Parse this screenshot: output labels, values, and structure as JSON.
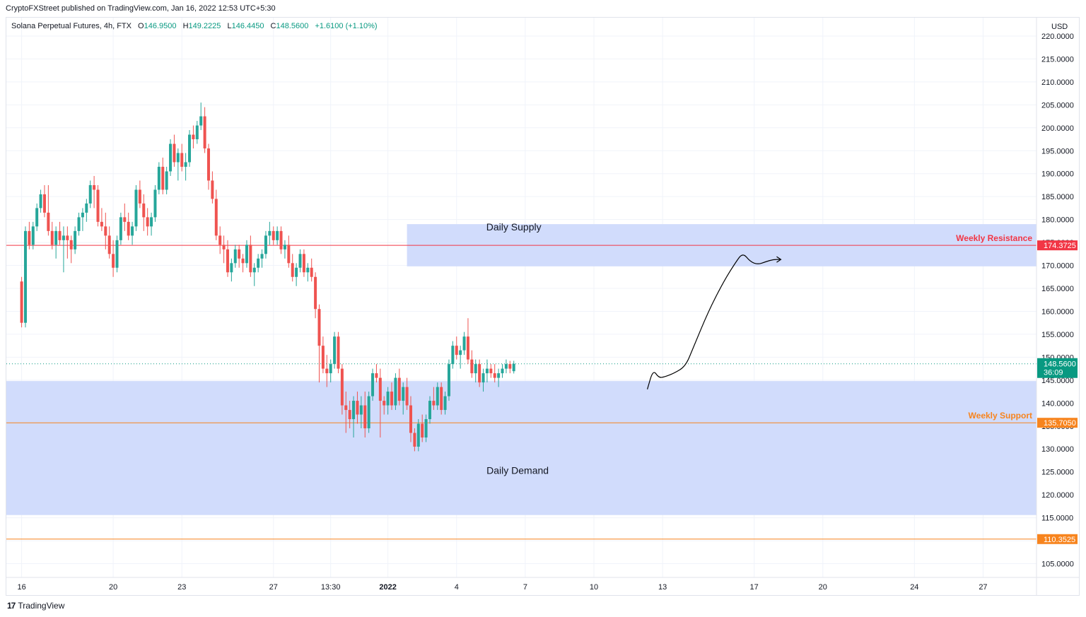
{
  "header": {
    "published_by": "CryptoFXStreet published on TradingView.com, Jan 16, 2022 12:53 UTC+5:30"
  },
  "legend": {
    "symbol": "Solana Perpetual Futures, 4h, FTX",
    "open_label": "O",
    "open": "146.9500",
    "high_label": "H",
    "high": "149.2225",
    "low_label": "L",
    "low": "146.4450",
    "close_label": "C",
    "close": "148.5600",
    "change": "+1.6100 (+1.10%)"
  },
  "footer": {
    "logo_text": "TradingView"
  },
  "colors": {
    "up": "#26a69a",
    "down": "#ef5350",
    "zone": "#d1dcfc",
    "resistance": "#f23645",
    "support": "#f7841e",
    "price": "#089981",
    "grid": "#f0f3fa"
  },
  "chart_data": {
    "type": "candlestick",
    "currency": "USD",
    "ylim": [
      102,
      224
    ],
    "y_ticks": [
      105,
      110,
      115,
      120,
      125,
      130,
      135,
      140,
      145,
      150,
      155,
      160,
      165,
      170,
      175,
      180,
      185,
      190,
      195,
      200,
      205,
      210,
      215,
      220
    ],
    "y_tick_labels": [
      "105.0000",
      "110.0000",
      "115.0000",
      "120.0000",
      "125.0000",
      "130.0000",
      "135.0000",
      "140.0000",
      "145.0000",
      "150.0000",
      "155.0000",
      "160.0000",
      "165.0000",
      "170.0000",
      "175.0000",
      "180.0000",
      "185.0000",
      "190.0000",
      "195.0000",
      "200.0000",
      "205.0000",
      "210.0000",
      "215.0000",
      "220.0000"
    ],
    "x_ticks": [
      {
        "t": 0,
        "label": "16",
        "bold": false
      },
      {
        "t": 24,
        "label": "20",
        "bold": false
      },
      {
        "t": 42,
        "label": "23",
        "bold": false
      },
      {
        "t": 66,
        "label": "27",
        "bold": false
      },
      {
        "t": 81,
        "label": "13:30",
        "bold": false
      },
      {
        "t": 96,
        "label": "2022",
        "bold": true
      },
      {
        "t": 114,
        "label": "4",
        "bold": false
      },
      {
        "t": 132,
        "label": "7",
        "bold": false
      },
      {
        "t": 150,
        "label": "10",
        "bold": false
      },
      {
        "t": 168,
        "label": "13",
        "bold": false
      },
      {
        "t": 192,
        "label": "17",
        "bold": false
      },
      {
        "t": 210,
        "label": "20",
        "bold": false
      },
      {
        "t": 234,
        "label": "24",
        "bold": false
      },
      {
        "t": 252,
        "label": "27",
        "bold": false
      }
    ],
    "x_range": [
      -4,
      266
    ],
    "zones": [
      {
        "label": "Daily Supply",
        "x_start": 101,
        "x_end": 266,
        "y_top": 179,
        "y_bottom": 169.8,
        "label_t": 129,
        "label_y": 177.6
      },
      {
        "label": "Daily Demand",
        "x_start": -4,
        "x_end": 266,
        "y_top": 144.8,
        "y_bottom": 115.6,
        "label_t": 130,
        "label_y": 124.6
      }
    ],
    "levels": [
      {
        "name": "Weekly Resistance",
        "value": 174.3725,
        "label": "174.3725",
        "kind": "resistance"
      },
      {
        "name": "Weekly Support",
        "value": 135.705,
        "label": "135.7050",
        "kind": "support"
      },
      {
        "name": "",
        "value": 110.3525,
        "label": "110.3525",
        "kind": "support"
      }
    ],
    "last_price": {
      "value": 148.56,
      "label": "148.5600",
      "countdown": "36:09"
    },
    "projection": [
      [
        164,
        143
      ],
      [
        165.5,
        147.3
      ],
      [
        167,
        145.5
      ],
      [
        168.5,
        145.7
      ],
      [
        171,
        146.5
      ],
      [
        174,
        148
      ],
      [
        176,
        152
      ],
      [
        180,
        160
      ],
      [
        184,
        166.5
      ],
      [
        187,
        170.5
      ],
      [
        189,
        172.8
      ],
      [
        191,
        170.8
      ],
      [
        193,
        170.2
      ],
      [
        195,
        170.8
      ],
      [
        197,
        171.3
      ],
      [
        199,
        171.3
      ]
    ],
    "candles": [
      [
        166.5,
        167.5,
        156.5,
        157.5
      ],
      [
        157.5,
        178.5,
        156.5,
        177.5
      ],
      [
        177.5,
        179.5,
        173.5,
        174.5
      ],
      [
        174.5,
        179.5,
        173.5,
        178.5
      ],
      [
        178.5,
        183.5,
        177.5,
        182.5
      ],
      [
        182.5,
        186.5,
        181.5,
        185.5
      ],
      [
        185.5,
        187.5,
        180.5,
        181.5
      ],
      [
        181.5,
        187.5,
        176.5,
        177.5
      ],
      [
        177.5,
        179.5,
        173.5,
        174.5
      ],
      [
        174.5,
        178.5,
        171.5,
        177.5
      ],
      [
        177.5,
        179.5,
        174.5,
        175.5
      ],
      [
        175.5,
        178.5,
        168.5,
        176.5
      ],
      [
        176.5,
        178.5,
        171.5,
        175.5
      ],
      [
        175.5,
        176.5,
        170.5,
        173.5
      ],
      [
        173.5,
        178.5,
        172.5,
        177.5
      ],
      [
        177.5,
        181.5,
        176.5,
        180.5
      ],
      [
        180.5,
        182.5,
        177.5,
        181.5
      ],
      [
        181.5,
        184.5,
        179.5,
        183.5
      ],
      [
        183.5,
        188.5,
        182.5,
        187.5
      ],
      [
        187.5,
        189.5,
        182.5,
        186.5
      ],
      [
        186.5,
        187.5,
        178.5,
        179.5
      ],
      [
        179.5,
        182.5,
        177.5,
        178.5
      ],
      [
        178.5,
        181.5,
        173.5,
        176.5
      ],
      [
        176.5,
        178.5,
        171.5,
        172.5
      ],
      [
        172.5,
        175.5,
        167.5,
        169.5
      ],
      [
        169.5,
        176.5,
        168.5,
        175.5
      ],
      [
        175.5,
        181.5,
        174.5,
        180.5
      ],
      [
        180.5,
        183.5,
        177.5,
        179.5
      ],
      [
        179.5,
        181.5,
        175.5,
        176.5
      ],
      [
        176.5,
        179.5,
        174.5,
        178.5
      ],
      [
        178.5,
        187.5,
        177.5,
        186.5
      ],
      [
        186.5,
        188.5,
        182.5,
        183.5
      ],
      [
        183.5,
        185.5,
        177.5,
        180.5
      ],
      [
        180.5,
        182.5,
        176.5,
        178.5
      ],
      [
        178.5,
        181.5,
        176.5,
        180.5
      ],
      [
        180.5,
        187.5,
        179.5,
        186.5
      ],
      [
        186.5,
        192.5,
        185.5,
        191.5
      ],
      [
        191.5,
        193.5,
        185.5,
        186.5
      ],
      [
        186.5,
        191.5,
        185.5,
        190.5
      ],
      [
        190.5,
        197.5,
        189.5,
        196.5
      ],
      [
        196.5,
        198.5,
        191.5,
        192.5
      ],
      [
        192.5,
        195.5,
        188.5,
        194.5
      ],
      [
        194.5,
        196.5,
        190.5,
        191.5
      ],
      [
        191.5,
        194.5,
        188.5,
        192.5
      ],
      [
        192.5,
        199.5,
        191.5,
        198.5
      ],
      [
        198.5,
        200.5,
        195.5,
        197.5
      ],
      [
        197.5,
        201.5,
        196.5,
        200.5
      ],
      [
        200.5,
        205.5,
        199.5,
        202.5
      ],
      [
        202.5,
        204.5,
        194.5,
        195.5
      ],
      [
        195.5,
        196.5,
        186.5,
        188.5
      ],
      [
        188.5,
        190.5,
        183.5,
        184.5
      ],
      [
        184.5,
        186.5,
        175.5,
        176.5
      ],
      [
        176.5,
        178.5,
        172.5,
        174.5
      ],
      [
        174.5,
        176.5,
        170.5,
        173.5
      ],
      [
        173.5,
        175.5,
        167.5,
        168.5
      ],
      [
        168.5,
        171.5,
        166.5,
        170.5
      ],
      [
        170.5,
        174.5,
        169.5,
        173.5
      ],
      [
        173.5,
        174.5,
        169.5,
        171.5
      ],
      [
        171.5,
        172.5,
        168.5,
        170.5
      ],
      [
        170.5,
        175.5,
        169.5,
        174.5
      ],
      [
        174.5,
        176.5,
        167.5,
        168.5
      ],
      [
        168.5,
        170.5,
        165.5,
        169.5
      ],
      [
        169.5,
        172.5,
        168.5,
        171.5
      ],
      [
        171.5,
        173.5,
        169.5,
        172.5
      ],
      [
        172.5,
        177.5,
        171.5,
        176.5
      ],
      [
        176.5,
        179.5,
        174.5,
        177.5
      ],
      [
        177.5,
        178.5,
        174.5,
        175.5
      ],
      [
        175.5,
        178.5,
        174.5,
        177.5
      ],
      [
        177.5,
        178.5,
        172.5,
        173.5
      ],
      [
        173.5,
        175.5,
        171.5,
        174.5
      ],
      [
        174.5,
        176.5,
        169.5,
        170.5
      ],
      [
        170.5,
        172.5,
        166.5,
        167.5
      ],
      [
        167.5,
        170.5,
        165.5,
        169.5
      ],
      [
        169.5,
        173.5,
        168.5,
        172.5
      ],
      [
        172.5,
        173.5,
        167.5,
        168.5
      ],
      [
        168.5,
        170.5,
        166.5,
        169.5
      ],
      [
        169.5,
        171.5,
        166.5,
        167.5
      ],
      [
        167.5,
        168.5,
        158.5,
        160.5
      ],
      [
        160.5,
        161.5,
        144.5,
        152.5
      ],
      [
        152.5,
        154.5,
        146.5,
        147.5
      ],
      [
        147.5,
        150.5,
        143.5,
        146.5
      ],
      [
        146.5,
        149.5,
        144.5,
        148.5
      ],
      [
        148.5,
        155.5,
        147.5,
        154.5
      ],
      [
        154.5,
        155.5,
        146.5,
        147.5
      ],
      [
        147.5,
        148.5,
        137.5,
        139.5
      ],
      [
        139.5,
        142.5,
        133.5,
        138.5
      ],
      [
        138.5,
        140.5,
        134.5,
        136.5
      ],
      [
        136.5,
        141.5,
        132.5,
        140.5
      ],
      [
        140.5,
        142.5,
        135.5,
        137.5
      ],
      [
        137.5,
        141.5,
        134.5,
        139.5
      ],
      [
        139.5,
        142.5,
        132.5,
        134.5
      ],
      [
        134.5,
        142.5,
        133.5,
        141.5
      ],
      [
        141.5,
        147.5,
        140.5,
        146.5
      ],
      [
        146.5,
        148.5,
        144.5,
        145.5
      ],
      [
        145.5,
        147.5,
        132.5,
        140.5
      ],
      [
        140.5,
        141.5,
        137.5,
        139.5
      ],
      [
        139.5,
        143.5,
        137.5,
        142.5
      ],
      [
        142.5,
        144.5,
        138.5,
        139.5
      ],
      [
        139.5,
        146.5,
        138.5,
        145.5
      ],
      [
        145.5,
        147.5,
        139.5,
        140.5
      ],
      [
        140.5,
        144.5,
        137.5,
        143.5
      ],
      [
        143.5,
        145.5,
        138.5,
        139.5
      ],
      [
        139.5,
        141.5,
        131.5,
        133.5
      ],
      [
        133.5,
        134.5,
        129.5,
        130.5
      ],
      [
        130.5,
        136.5,
        129.5,
        135.5
      ],
      [
        135.5,
        137.5,
        131.5,
        132.5
      ],
      [
        132.5,
        137.5,
        131.5,
        136.5
      ],
      [
        136.5,
        141.5,
        135.5,
        140.5
      ],
      [
        140.5,
        143.5,
        138.5,
        139.5
      ],
      [
        139.5,
        144.5,
        138.5,
        143.5
      ],
      [
        143.5,
        144.5,
        137.5,
        138.5
      ],
      [
        138.5,
        142.5,
        137.5,
        141.5
      ],
      [
        141.5,
        149.5,
        140.5,
        148.5
      ],
      [
        148.5,
        153.5,
        147.5,
        152.5
      ],
      [
        152.5,
        154.5,
        149.5,
        150.5
      ],
      [
        150.5,
        152.5,
        147.5,
        151.5
      ],
      [
        151.5,
        155.5,
        150.5,
        154.5
      ],
      [
        154.5,
        158.5,
        148.5,
        149.5
      ],
      [
        149.5,
        151.5,
        145.5,
        146.5
      ],
      [
        146.5,
        149.5,
        144.5,
        148.5
      ],
      [
        148.5,
        149.5,
        143.5,
        144.5
      ],
      [
        144.5,
        147.5,
        142.5,
        146.5
      ],
      [
        146.5,
        149.5,
        144.5,
        147.5
      ],
      [
        147.5,
        148.5,
        145.5,
        146.5
      ],
      [
        146.5,
        148.5,
        144.5,
        145.5
      ],
      [
        145.5,
        147.5,
        143.5,
        146.5
      ],
      [
        146.5,
        148.5,
        145.5,
        147.5
      ],
      [
        147.5,
        149.5,
        146.5,
        148.5
      ],
      [
        148.5,
        149.2,
        146.5,
        147.5
      ],
      [
        146.95,
        149.2225,
        146.445,
        148.56
      ]
    ]
  }
}
